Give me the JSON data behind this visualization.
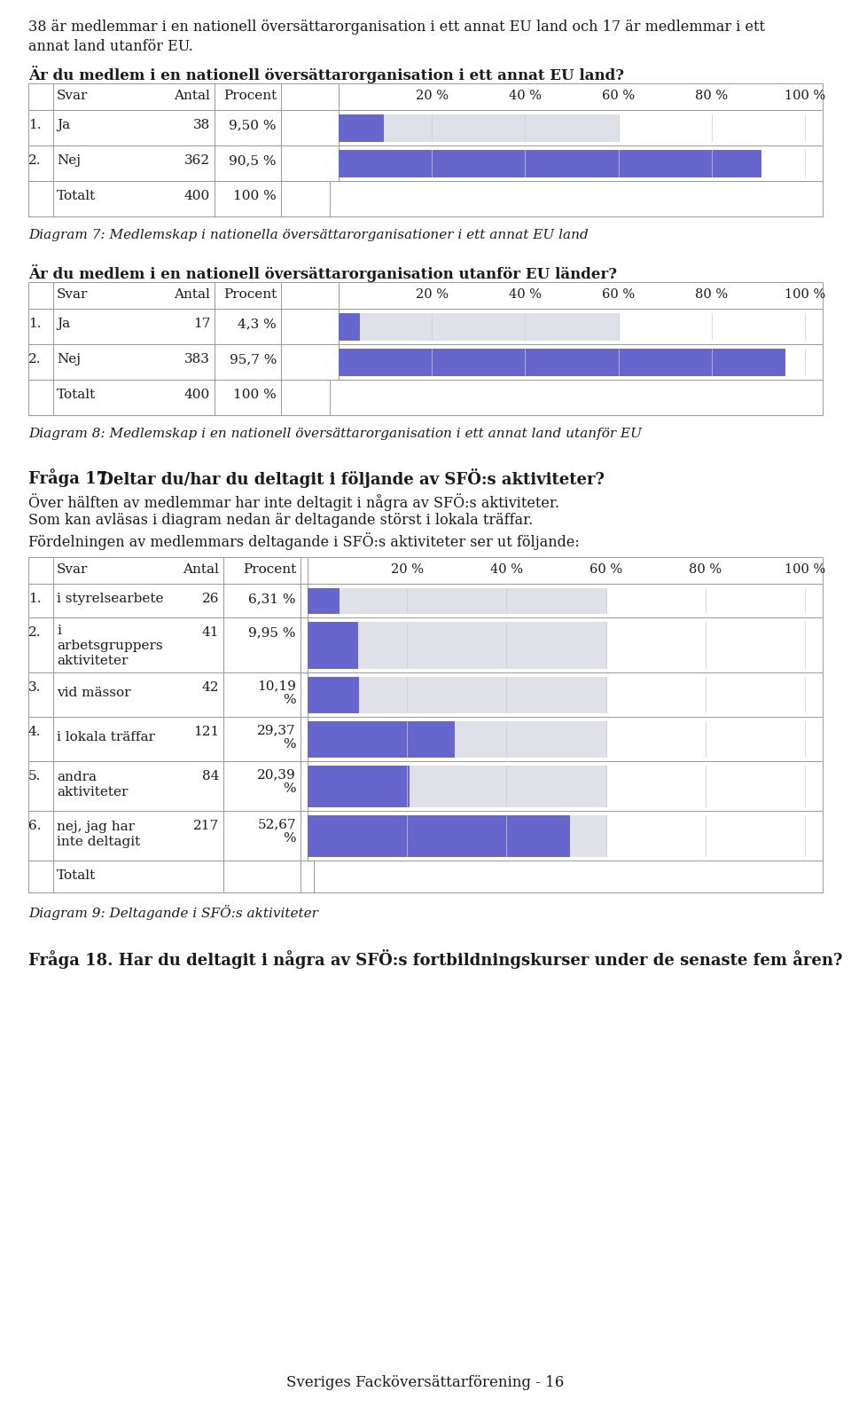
{
  "page_bg": "#ffffff",
  "bar_color_blue": "#6666cc",
  "bar_bg_color": "#e0e0e8",
  "top_text1": "38 är medlemmar i en nationell översättarorganisation i ett annat EU land och 17 är medlemmar i ett",
  "top_text2": "annat land utanför EU.",
  "question1": "Är du medlem i en nationell översättarorganisation i ett annat EU land?",
  "caption1": "Diagram 7: Medlemskap i nationella översättarorganisationer i ett annat EU land",
  "question2": "Är du medlem i en nationell översättarorganisation utanför EU länder?",
  "caption2": "Diagram 8: Medlemskap i en nationell översättarorganisation i ett annat land utanför EU",
  "fraga17_label": "Fråga 17:",
  "fraga17_rest": " Deltar du/har du deltagit i följande av SFÖ:s aktiviteter?",
  "fraga17_text1": "Över hälften av medlemmar har inte deltagit i några av SFÖ:s aktiviteter.",
  "fraga17_text2": "Som kan avläsas i diagram nedan är deltagande störst i lokala träffar.",
  "fraga17_text3": "Fördelningen av medlemmars deltagande i SFÖ:s aktiviteter ser ut följande:",
  "caption3": "Diagram 9: Deltagande i SFÖ:s aktiviteter",
  "fraga18": "Fråga 18. Har du deltagit i några av SFÖ:s fortbildningskurser under de senaste fem åren?",
  "footer": "Sveriges Facköversättarförening - 16",
  "table1": {
    "rows": [
      {
        "num": "1.",
        "label": "Ja",
        "antal": "38",
        "procent": "9,50 %",
        "pct_val": 9.5
      },
      {
        "num": "2.",
        "label": "Nej",
        "antal": "362",
        "procent": "90,5 %",
        "pct_val": 90.5
      }
    ],
    "total_antal": "400",
    "total_procent": "100 %"
  },
  "table2": {
    "rows": [
      {
        "num": "1.",
        "label": "Ja",
        "antal": "17",
        "procent": "4,3 %",
        "pct_val": 4.3
      },
      {
        "num": "2.",
        "label": "Nej",
        "antal": "383",
        "procent": "95,7 %",
        "pct_val": 95.7
      }
    ],
    "total_antal": "400",
    "total_procent": "100 %"
  },
  "table3": {
    "rows": [
      {
        "num": "1.",
        "label": "i styrelsearbete",
        "antal": "26",
        "procent": "6,31 %",
        "pct_val": 6.31,
        "rh": 38
      },
      {
        "num": "2.",
        "label": "i\narbetsgruppers\naktiviteter",
        "antal": "41",
        "procent": "9,95 %",
        "pct_val": 9.95,
        "rh": 62
      },
      {
        "num": "3.",
        "label": "vid mässor",
        "antal": "42",
        "procent": "10,19\n%",
        "pct_val": 10.19,
        "rh": 50
      },
      {
        "num": "4.",
        "label": "i lokala träffar",
        "antal": "121",
        "procent": "29,37\n%",
        "pct_val": 29.37,
        "rh": 50
      },
      {
        "num": "5.",
        "label": "andra\naktiviteter",
        "antal": "84",
        "procent": "20,39\n%",
        "pct_val": 20.39,
        "rh": 56
      },
      {
        "num": "6.",
        "label": "nej, jag har\ninte deltagit",
        "antal": "217",
        "procent": "52,67\n%",
        "pct_val": 52.67,
        "rh": 56
      }
    ]
  }
}
